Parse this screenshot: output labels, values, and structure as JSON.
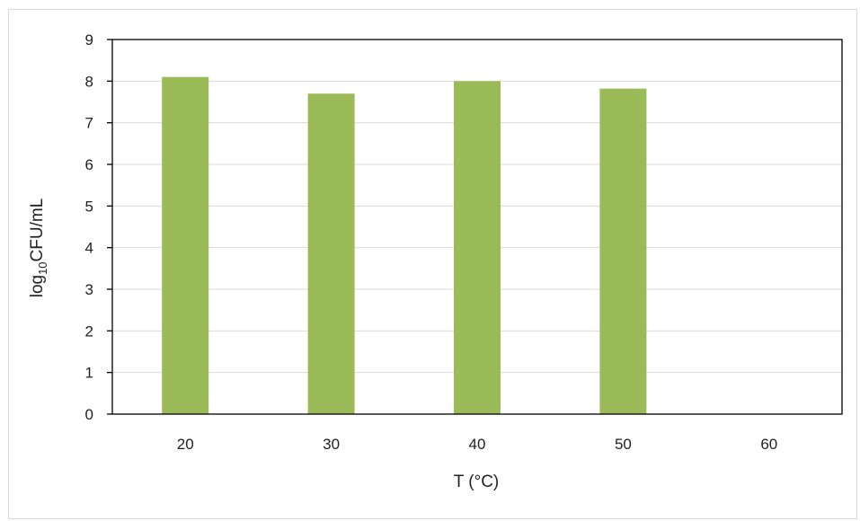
{
  "chart_data": {
    "type": "bar",
    "categories": [
      "20",
      "30",
      "40",
      "50",
      "60"
    ],
    "values": [
      8.1,
      7.7,
      8.0,
      7.82,
      0
    ],
    "xlabel": "T (°C)",
    "ylabel_main": "log",
    "ylabel_sub": "10",
    "ylabel_rest": "CFU/mL",
    "ylim": [
      0,
      9
    ],
    "yticks": [
      "0",
      "1",
      "2",
      "3",
      "4",
      "5",
      "6",
      "7",
      "8",
      "9"
    ],
    "grid": true,
    "bar_color": "#9BBB59",
    "grid_color": "#d9d9d9"
  }
}
